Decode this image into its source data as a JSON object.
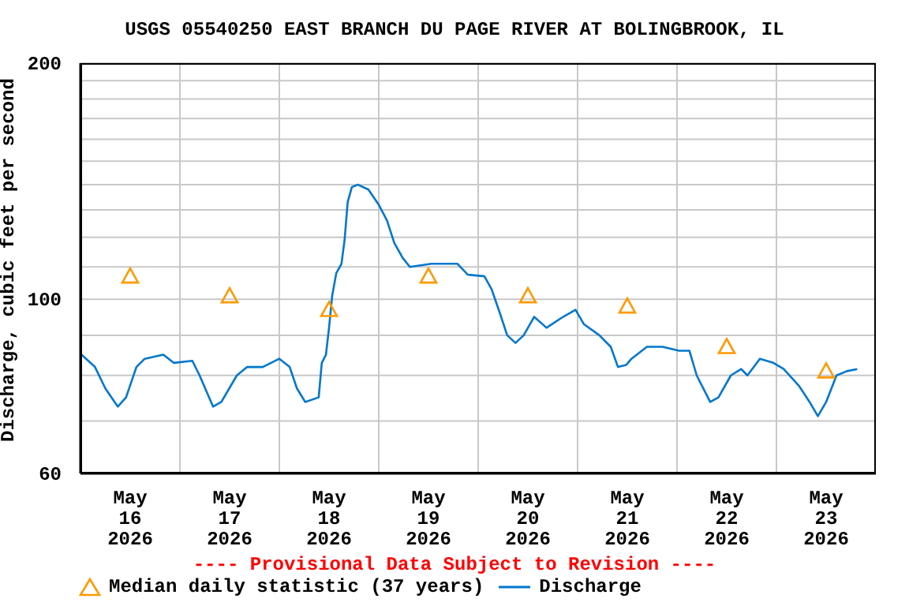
{
  "chart_data": {
    "type": "line",
    "title": "USGS 05540250 EAST BRANCH DU PAGE RIVER AT BOLINGBROOK, IL",
    "ylabel": "Discharge, cubic feet per second",
    "annotations": [
      "---- Provisional Data Subject to Revision ----"
    ],
    "log": "y",
    "grid": true,
    "legend": "bottom",
    "xlim": [
      "2026-05-16T00:00",
      "2026-05-24T00:00"
    ],
    "xticks": [
      {
        "value": "2026-05-16T12:00",
        "label": "May\n16\n2026"
      },
      {
        "value": "2026-05-17T00:00",
        "label": null
      },
      {
        "value": "2026-05-17T12:00",
        "label": "May\n17\n2026"
      },
      {
        "value": "2026-05-18T00:00",
        "label": null
      },
      {
        "value": "2026-05-18T12:00",
        "label": "May\n18\n2026"
      },
      {
        "value": "2026-05-19T00:00",
        "label": null
      },
      {
        "value": "2026-05-19T12:00",
        "label": "May\n19\n2026"
      },
      {
        "value": "2026-05-20T00:00",
        "label": null
      },
      {
        "value": "2026-05-20T12:00",
        "label": "May\n20\n2026"
      },
      {
        "value": "2026-05-21T00:00",
        "label": null
      },
      {
        "value": "2026-05-21T12:00",
        "label": "May\n21\n2026"
      },
      {
        "value": "2026-05-22T00:00",
        "label": null
      },
      {
        "value": "2026-05-22T12:00",
        "label": "May\n22\n2026"
      },
      {
        "value": "2026-05-23T00:00",
        "label": null
      },
      {
        "value": "2026-05-23T12:00",
        "label": "May\n23\n2026"
      }
    ],
    "ylim": [
      60,
      200
    ],
    "yticks": [
      60,
      {
        "value": 70,
        "label": null
      },
      {
        "value": 80,
        "label": null
      },
      {
        "value": 90,
        "label": null
      },
      100,
      {
        "value": 110,
        "label": null
      },
      {
        "value": 120,
        "label": null
      },
      {
        "value": 130,
        "label": null
      },
      {
        "value": 140,
        "label": null
      },
      {
        "value": 150,
        "label": null
      },
      {
        "value": 160,
        "label": null
      },
      {
        "value": 170,
        "label": null
      },
      {
        "value": 180,
        "label": null
      },
      {
        "value": 190,
        "label": null
      },
      200
    ],
    "series": [
      {
        "name": "Median daily statistic (37 years)",
        "type": "scatter",
        "marker": "triangle",
        "color": "#ff9900",
        "x": [
          "2026-05-16T12:00",
          "2026-05-17T12:00",
          "2026-05-18T12:00",
          "2026-05-19T12:00",
          "2026-05-20T12:00",
          "2026-05-21T12:00",
          "2026-05-22T12:00",
          "2026-05-23T12:00"
        ],
        "values": [
          107,
          101,
          97,
          107,
          101,
          98,
          87,
          81
        ]
      },
      {
        "name": "Discharge",
        "type": "line",
        "marker": "none",
        "color": "#0077cc",
        "x": [
          "2026-05-16T00:15",
          "2026-05-16T03:30",
          "2026-05-16T06:00",
          "2026-05-16T09:00",
          "2026-05-16T11:00",
          "2026-05-16T13:30",
          "2026-05-16T15:30",
          "2026-05-16T20:00",
          "2026-05-16T22:30",
          "2026-05-17T03:00",
          "2026-05-17T04:45",
          "2026-05-17T08:00",
          "2026-05-17T10:00",
          "2026-05-17T13:45",
          "2026-05-17T16:15",
          "2026-05-17T20:00",
          "2026-05-18T00:00",
          "2026-05-18T02:30",
          "2026-05-18T04:15",
          "2026-05-18T06:15",
          "2026-05-18T09:30",
          "2026-05-18T10:15",
          "2026-05-18T11:15",
          "2026-05-18T12:00",
          "2026-05-18T12:45",
          "2026-05-18T13:45",
          "2026-05-18T15:00",
          "2026-05-18T15:45",
          "2026-05-18T16:30",
          "2026-05-18T17:30",
          "2026-05-18T19:00",
          "2026-05-18T21:30",
          "2026-05-19T00:00",
          "2026-05-19T02:00",
          "2026-05-19T03:45",
          "2026-05-19T05:45",
          "2026-05-19T07:30",
          "2026-05-19T12:45",
          "2026-05-19T19:00",
          "2026-05-19T21:30",
          "2026-05-20T01:30",
          "2026-05-20T03:15",
          "2026-05-20T05:15",
          "2026-05-20T07:00",
          "2026-05-20T09:00",
          "2026-05-20T11:00",
          "2026-05-20T13:30",
          "2026-05-20T16:30",
          "2026-05-20T20:30",
          "2026-05-20T23:30",
          "2026-05-21T01:30",
          "2026-05-21T05:15",
          "2026-05-21T08:00",
          "2026-05-21T09:45",
          "2026-05-21T11:45",
          "2026-05-21T13:00",
          "2026-05-21T16:45",
          "2026-05-21T20:30",
          "2026-05-22T00:30",
          "2026-05-22T03:00",
          "2026-05-22T04:45",
          "2026-05-22T08:00",
          "2026-05-22T10:00",
          "2026-05-22T13:00",
          "2026-05-22T15:30",
          "2026-05-22T17:00",
          "2026-05-22T20:00",
          "2026-05-22T23:15",
          "2026-05-23T01:45",
          "2026-05-23T05:30",
          "2026-05-23T08:00",
          "2026-05-23T10:00",
          "2026-05-23T12:00",
          "2026-05-23T14:30",
          "2026-05-23T17:00",
          "2026-05-23T19:30"
        ],
        "values": [
          85,
          82,
          77,
          73,
          75,
          82,
          84,
          85,
          83,
          83.5,
          80,
          73,
          74,
          80,
          82,
          82,
          84,
          82,
          77,
          74,
          75,
          83,
          85,
          92,
          101,
          108,
          111,
          119,
          133,
          139,
          140,
          138,
          132,
          126,
          118,
          113,
          110,
          111,
          111,
          107.5,
          107,
          103,
          96,
          90,
          88,
          90,
          95,
          92,
          95,
          97,
          93,
          90,
          87,
          82,
          82.5,
          84,
          87,
          87,
          86,
          86,
          80,
          74,
          75,
          80,
          81.5,
          80,
          84,
          83,
          81.5,
          77.5,
          74,
          71,
          74,
          80,
          81,
          81.5
        ]
      }
    ]
  }
}
